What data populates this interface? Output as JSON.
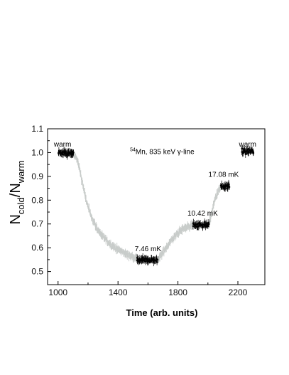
{
  "chart_data": {
    "type": "scatter",
    "xlabel": "Time (arb. units)",
    "ylabel": {
      "base": "N",
      "num_sub": "cold",
      "den_sub": "warm"
    },
    "xlim": [
      930,
      2380
    ],
    "ylim": [
      0.445,
      1.1
    ],
    "x_ticks": [
      1000,
      1400,
      1800,
      2200
    ],
    "y_ticks": [
      0.5,
      0.6,
      0.7,
      0.8,
      0.9,
      1.0,
      1.1
    ],
    "title_annotation": {
      "superscript": "54",
      "text": "Mn, 835 keV γ-line",
      "x": 1480,
      "y": 0.994
    },
    "annotations": [
      {
        "text": "warm",
        "x": 1030,
        "y": 1.025
      },
      {
        "text": "7.46 mK",
        "x": 1600,
        "y": 0.586
      },
      {
        "text": "10.42 mK",
        "x": 1965,
        "y": 0.735
      },
      {
        "text": "17.08 mK",
        "x": 2105,
        "y": 0.898
      },
      {
        "text": "warm",
        "x": 2265,
        "y": 1.025
      }
    ],
    "series": [
      {
        "kind": "measured",
        "color": "#000000",
        "segments": [
          {
            "x_start": 1000,
            "x_end": 1105,
            "mean": 0.997
          },
          {
            "x_start": 1525,
            "x_end": 1665,
            "mean": 0.548
          },
          {
            "x_start": 1900,
            "x_end": 2010,
            "mean": 0.697
          },
          {
            "x_start": 2085,
            "x_end": 2145,
            "mean": 0.858
          },
          {
            "x_start": 2225,
            "x_end": 2305,
            "mean": 1.005
          }
        ]
      },
      {
        "kind": "transient",
        "color": "#c8ccca",
        "curve": [
          [
            1105,
            0.99
          ],
          [
            1125,
            0.975
          ],
          [
            1140,
            0.94
          ],
          [
            1160,
            0.88
          ],
          [
            1180,
            0.82
          ],
          [
            1200,
            0.77
          ],
          [
            1230,
            0.72
          ],
          [
            1260,
            0.68
          ],
          [
            1300,
            0.645
          ],
          [
            1340,
            0.62
          ],
          [
            1380,
            0.6
          ],
          [
            1420,
            0.585
          ],
          [
            1460,
            0.572
          ],
          [
            1500,
            0.562
          ],
          [
            1525,
            0.556
          ],
          [
            1665,
            0.548
          ],
          [
            1690,
            0.57
          ],
          [
            1720,
            0.6
          ],
          [
            1760,
            0.635
          ],
          [
            1800,
            0.662
          ],
          [
            1840,
            0.682
          ],
          [
            1880,
            0.692
          ],
          [
            1900,
            0.697
          ],
          [
            2010,
            0.706
          ],
          [
            2030,
            0.76
          ],
          [
            2050,
            0.81
          ],
          [
            2070,
            0.838
          ],
          [
            2085,
            0.85
          ]
        ]
      }
    ]
  }
}
